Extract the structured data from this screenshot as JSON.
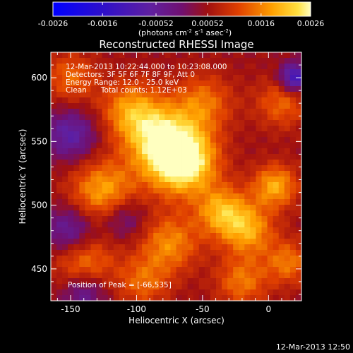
{
  "chart_data": {
    "type": "heatmap",
    "title": "Reconstructed RHESSI Image",
    "xlabel": "Heliocentric X (arcsec)",
    "ylabel": "Heliocentric Y (arcsec)",
    "xlim": [
      -165,
      25
    ],
    "ylim": [
      425,
      620
    ],
    "xticks": [
      -150,
      -100,
      -50,
      0
    ],
    "yticks": [
      450,
      500,
      550,
      600
    ],
    "colorbar": {
      "range": [
        -0.0026,
        0.0026
      ],
      "ticks": [
        "-0.0026",
        "-0.0016",
        "-0.00052",
        "0.00052",
        "0.0016",
        "0.0026"
      ],
      "units_text": "(photons cm",
      "units_sup1": "-2",
      "units_mid": " s",
      "units_sup2": "-1",
      "units_tail": " asec",
      "units_sup3": "-2",
      "units_close": ")"
    },
    "annotations": [
      "12-Mar-2013 10:22:44.000 to 10:23:08.000",
      "Detectors: 3F 5F 6F 7F 8F 9F, Att 0",
      "Energy Range: 12.0 - 25.0 keV",
      "Clean      Total counts: 1.12E+03"
    ],
    "peak_label": "Position of Peak = [-66,535]",
    "peak": {
      "x": -66,
      "y": 535
    },
    "sources": [
      {
        "x": -66,
        "y": 535,
        "amp": 1.0,
        "sigma": 18
      },
      {
        "x": -85,
        "y": 555,
        "amp": 0.55,
        "sigma": 18
      },
      {
        "x": -105,
        "y": 575,
        "amp": 0.45,
        "sigma": 16
      },
      {
        "x": -50,
        "y": 580,
        "amp": 0.4,
        "sigma": 16
      },
      {
        "x": -35,
        "y": 495,
        "amp": 0.55,
        "sigma": 14
      },
      {
        "x": -15,
        "y": 480,
        "amp": 0.5,
        "sigma": 14
      },
      {
        "x": 5,
        "y": 515,
        "amp": 0.55,
        "sigma": 12
      },
      {
        "x": -125,
        "y": 510,
        "amp": 0.55,
        "sigma": 18
      },
      {
        "x": -140,
        "y": 455,
        "amp": 0.45,
        "sigma": 16
      },
      {
        "x": -75,
        "y": 470,
        "amp": 0.45,
        "sigma": 16
      },
      {
        "x": -95,
        "y": 440,
        "amp": 0.35,
        "sigma": 14
      },
      {
        "x": -20,
        "y": 440,
        "amp": 0.4,
        "sigma": 14
      },
      {
        "x": 15,
        "y": 455,
        "amp": 0.4,
        "sigma": 12
      },
      {
        "x": 10,
        "y": 580,
        "amp": 0.35,
        "sigma": 14
      },
      {
        "x": -150,
        "y": 600,
        "amp": 0.35,
        "sigma": 14
      },
      {
        "x": -150,
        "y": 555,
        "amp": -0.45,
        "sigma": 14
      },
      {
        "x": -150,
        "y": 480,
        "amp": -0.45,
        "sigma": 14
      },
      {
        "x": 20,
        "y": 600,
        "amp": -0.7,
        "sigma": 8
      },
      {
        "x": -110,
        "y": 490,
        "amp": -0.35,
        "sigma": 12
      },
      {
        "x": -140,
        "y": 432,
        "amp": -0.4,
        "sigma": 12
      }
    ],
    "footer_date": "12-Mar-2013 12:50"
  }
}
